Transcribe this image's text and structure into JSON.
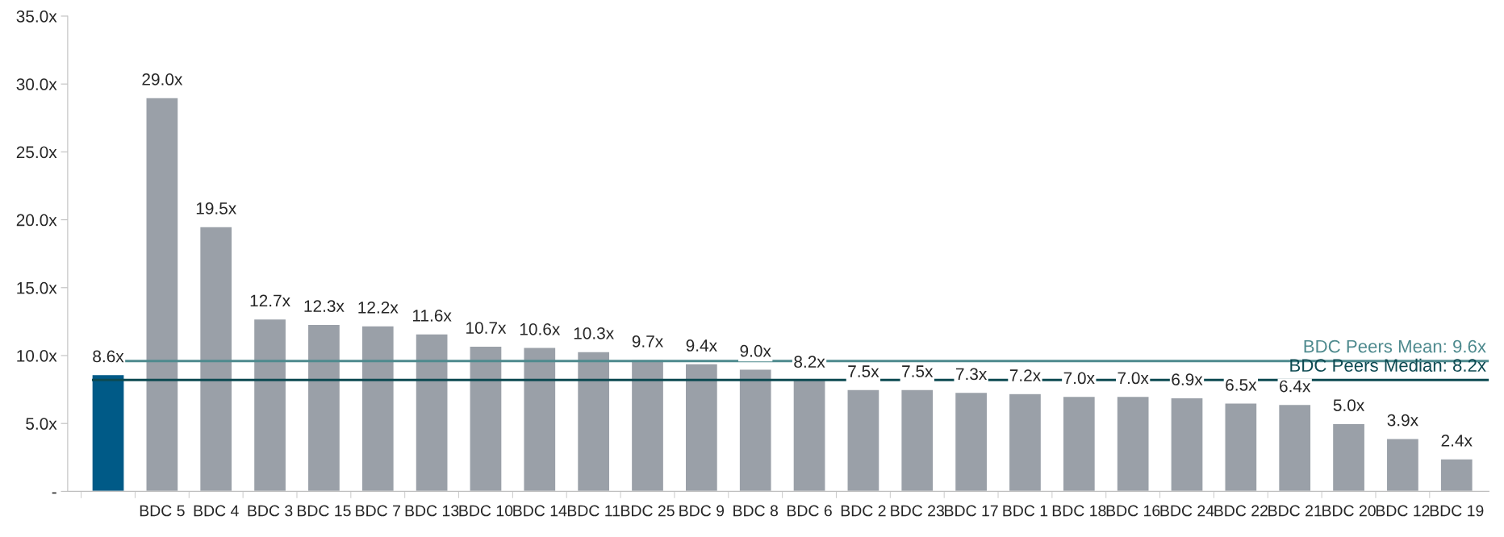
{
  "chart_data": {
    "type": "bar",
    "categories": [
      null,
      "BDC 5",
      "BDC 4",
      "BDC 3",
      "BDC 15",
      "BDC 7",
      "BDC 13",
      "BDC 10",
      "BDC 14",
      "BDC 11",
      "BDC 25",
      "BDC 9",
      "BDC 8",
      "BDC 6",
      "BDC 2",
      "BDC 23",
      "BDC 17",
      "BDC 1",
      "BDC 18",
      "BDC 16",
      "BDC 24",
      "BDC 22",
      "BDC 21",
      "BDC 20",
      "BDC 12",
      "BDC 19"
    ],
    "values": [
      8.6,
      29.0,
      19.5,
      12.7,
      12.3,
      12.2,
      11.6,
      10.7,
      10.6,
      10.3,
      9.7,
      9.4,
      9.0,
      8.2,
      7.5,
      7.5,
      7.3,
      7.2,
      7.0,
      7.0,
      6.9,
      6.5,
      6.4,
      5.0,
      3.9,
      2.4
    ],
    "value_labels": [
      "8.6x",
      "29.0x",
      "19.5x",
      "12.7x",
      "12.3x",
      "12.2x",
      "11.6x",
      "10.7x",
      "10.6x",
      "10.3x",
      "9.7x",
      "9.4x",
      "9.0x",
      "8.2x",
      "7.5x",
      "7.5x",
      "7.3x",
      "7.2x",
      "7.0x",
      "7.0x",
      "6.9x",
      "6.5x",
      "6.4x",
      "5.0x",
      "3.9x",
      "2.4x"
    ],
    "colors": [
      "#005a87",
      "#9aa0a8",
      "#9aa0a8",
      "#9aa0a8",
      "#9aa0a8",
      "#9aa0a8",
      "#9aa0a8",
      "#9aa0a8",
      "#9aa0a8",
      "#9aa0a8",
      "#9aa0a8",
      "#9aa0a8",
      "#9aa0a8",
      "#9aa0a8",
      "#9aa0a8",
      "#9aa0a8",
      "#9aa0a8",
      "#9aa0a8",
      "#9aa0a8",
      "#9aa0a8",
      "#9aa0a8",
      "#9aa0a8",
      "#9aa0a8",
      "#9aa0a8",
      "#9aa0a8",
      "#9aa0a8"
    ],
    "ylim": [
      0,
      35
    ],
    "yticks": [
      {
        "value": 0,
        "label": "-"
      },
      {
        "value": 5,
        "label": "5.0x"
      },
      {
        "value": 10,
        "label": "10.0x"
      },
      {
        "value": 15,
        "label": "15.0x"
      },
      {
        "value": 20,
        "label": "20.0x"
      },
      {
        "value": 25,
        "label": "25.0x"
      },
      {
        "value": 30,
        "label": "30.0x"
      },
      {
        "value": 35,
        "label": "35.0x"
      }
    ],
    "ref_lines": [
      {
        "axis": "y",
        "value": 9.6,
        "label": "BDC Peers Mean: 9.6x",
        "color": "#4e8a8e",
        "line_style": "solid"
      },
      {
        "axis": "y",
        "value": 8.2,
        "label": "BDC Peers Median: 8.2x",
        "color": "#0d4a52",
        "line_style": "solid"
      }
    ],
    "grid": false,
    "legend": false
  }
}
